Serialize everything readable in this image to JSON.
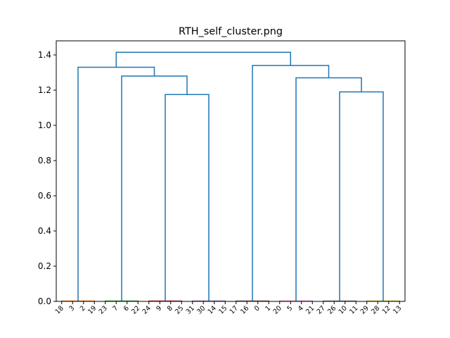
{
  "chart_data": {
    "type": "dendrogram",
    "title": "RTH_self_cluster.png",
    "xlabel": "",
    "ylabel": "",
    "ylim": [
      0,
      1.48
    ],
    "yticks": [
      "0.0",
      "0.2",
      "0.4",
      "0.6",
      "0.8",
      "1.0",
      "1.2",
      "1.4"
    ],
    "leaves": [
      "18",
      "3",
      "2",
      "19",
      "23",
      "7",
      "6",
      "22",
      "24",
      "9",
      "8",
      "25",
      "31",
      "30",
      "14",
      "15",
      "17",
      "16",
      "0",
      "1",
      "20",
      "5",
      "4",
      "21",
      "27",
      "26",
      "10",
      "11",
      "29",
      "28",
      "12",
      "13"
    ],
    "leaf_groups": [
      {
        "leaves": [
          "18",
          "3",
          "2",
          "19"
        ],
        "color": "#ff7f0e"
      },
      {
        "leaves": [
          "23",
          "7",
          "6",
          "22"
        ],
        "color": "#2ca02c"
      },
      {
        "leaves": [
          "24",
          "9",
          "8",
          "25"
        ],
        "color": "#d62728"
      },
      {
        "leaves": [
          "31",
          "30",
          "14",
          "15"
        ],
        "color": "#9467bd"
      },
      {
        "leaves": [
          "17",
          "16",
          "0",
          "1"
        ],
        "color": "#8c564b"
      },
      {
        "leaves": [
          "20",
          "5",
          "4",
          "21"
        ],
        "color": "#e377c2"
      },
      {
        "leaves": [
          "27",
          "26",
          "10",
          "11"
        ],
        "color": "#7f7f7f"
      },
      {
        "leaves": [
          "29",
          "28",
          "12",
          "13"
        ],
        "color": "#bcbd22"
      }
    ],
    "merges": [
      {
        "left_group": 2,
        "right_group": 3,
        "height": 1.175
      },
      {
        "left_group": 1,
        "right_node": 0,
        "height": 1.28
      },
      {
        "left_group": 0,
        "right_node": 1,
        "height": 1.33
      },
      {
        "left_group": 6,
        "right_group": 7,
        "height": 1.19
      },
      {
        "left_group": 5,
        "right_node": 3,
        "height": 1.27
      },
      {
        "left_group": 4,
        "right_node": 4,
        "height": 1.34
      },
      {
        "left_node": 2,
        "right_node": 5,
        "height": 1.415
      }
    ],
    "link_color": "#1f77b4",
    "grid": false
  }
}
